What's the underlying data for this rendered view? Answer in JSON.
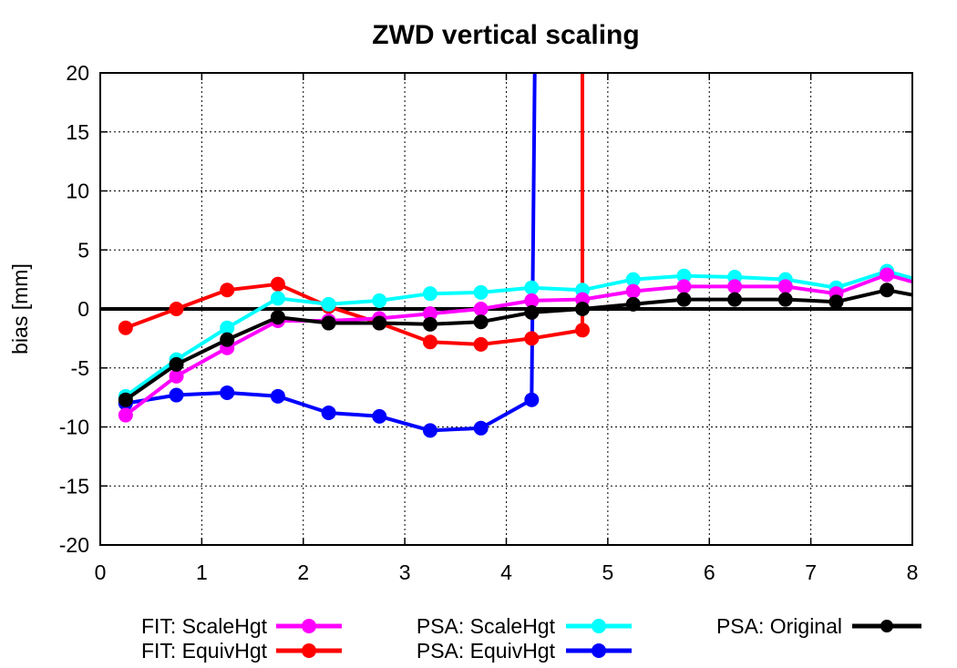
{
  "chart_data": {
    "type": "line",
    "title": "ZWD vertical scaling",
    "xlabel": "",
    "ylabel": "bias [mm]",
    "xlim": [
      0,
      8
    ],
    "ylim": [
      -20,
      20
    ],
    "xticks": [
      "0",
      "1",
      "2",
      "3",
      "4",
      "5",
      "6",
      "7",
      "8"
    ],
    "yticks": [
      "-20",
      "-15",
      "-10",
      "-5",
      "0",
      "5",
      "10",
      "15",
      "20"
    ],
    "grid": true,
    "legend_position": "bottom",
    "zero_line": 0,
    "series": [
      {
        "name": "FIT: ScaleHgt",
        "color": "#ff00ff",
        "x": [
          0.25,
          0.75,
          1.25,
          1.75,
          2.25,
          2.75,
          3.25,
          3.75,
          4.25,
          4.75,
          5.25,
          5.75,
          6.25,
          6.75,
          7.25,
          7.75,
          8.0
        ],
        "y": [
          -9.0,
          -5.7,
          -3.3,
          -1.0,
          -1.0,
          -0.8,
          -0.4,
          0.0,
          0.7,
          0.8,
          1.5,
          1.9,
          1.9,
          1.9,
          1.3,
          2.9,
          2.3
        ]
      },
      {
        "name": "FIT: EquivHgt",
        "color": "#ff0000",
        "x": [
          0.25,
          0.75,
          1.25,
          1.75,
          2.25,
          2.75,
          3.25,
          3.75,
          4.25,
          4.75,
          4.75
        ],
        "y": [
          -1.6,
          0.0,
          1.6,
          2.1,
          0.2,
          -1.2,
          -2.8,
          -3.0,
          -2.5,
          -1.8,
          20
        ]
      },
      {
        "name": "PSA: ScaleHgt",
        "color": "#00ffff",
        "x": [
          0.25,
          0.75,
          1.25,
          1.75,
          2.25,
          2.75,
          3.25,
          3.75,
          4.25,
          4.75,
          5.25,
          5.75,
          6.25,
          6.75,
          7.25,
          7.75,
          8.0
        ],
        "y": [
          -7.4,
          -4.3,
          -1.6,
          0.9,
          0.4,
          0.7,
          1.3,
          1.4,
          1.8,
          1.6,
          2.5,
          2.8,
          2.7,
          2.5,
          1.8,
          3.2,
          2.6
        ]
      },
      {
        "name": "PSA: EquivHgt",
        "color": "#0000ff",
        "x": [
          0.25,
          0.75,
          1.25,
          1.75,
          2.25,
          2.75,
          3.25,
          3.75,
          4.25,
          4.28
        ],
        "y": [
          -8.0,
          -7.3,
          -7.1,
          -7.4,
          -8.8,
          -9.1,
          -10.3,
          -10.1,
          -7.7,
          20
        ]
      },
      {
        "name": "PSA: Original",
        "color": "#000000",
        "x": [
          0.25,
          0.75,
          1.25,
          1.75,
          2.25,
          2.75,
          3.25,
          3.75,
          4.25,
          4.75,
          5.25,
          5.75,
          6.25,
          6.75,
          7.25,
          7.75,
          8.0
        ],
        "y": [
          -7.7,
          -4.7,
          -2.6,
          -0.7,
          -1.2,
          -1.2,
          -1.3,
          -1.1,
          -0.3,
          0.0,
          0.4,
          0.8,
          0.8,
          0.8,
          0.6,
          1.6,
          1.2
        ]
      }
    ]
  }
}
